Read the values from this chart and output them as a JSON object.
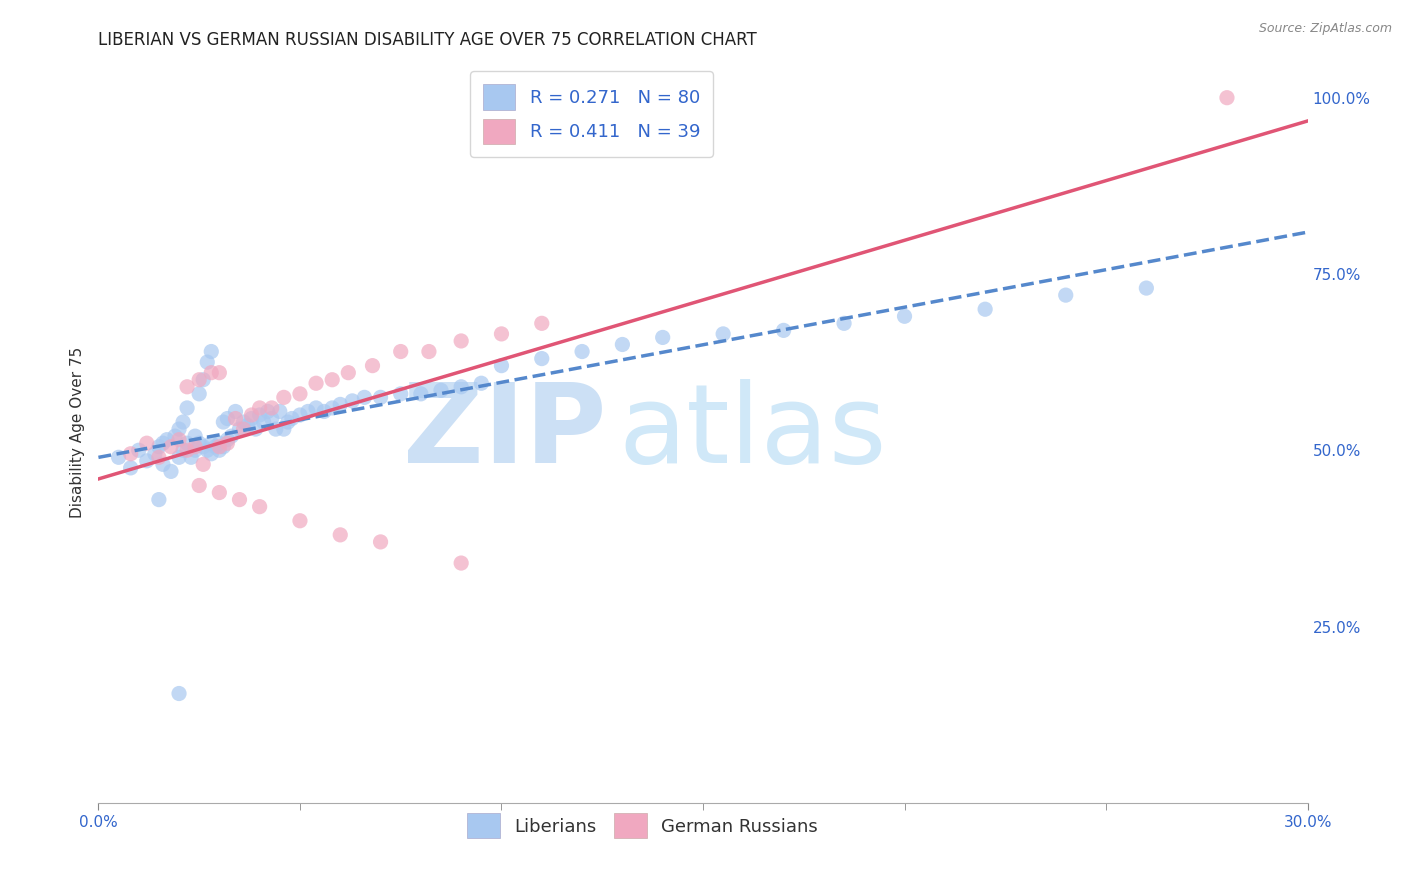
{
  "title": "LIBERIAN VS GERMAN RUSSIAN DISABILITY AGE OVER 75 CORRELATION CHART",
  "source": "Source: ZipAtlas.com",
  "ylabel": "Disability Age Over 75",
  "xmin": 0.0,
  "xmax": 0.3,
  "ymin": 0.0,
  "ymax": 1.05,
  "y_tick_vals": [
    0.25,
    0.5,
    0.75,
    1.0
  ],
  "y_tick_labels": [
    "25.0%",
    "50.0%",
    "75.0%",
    "100.0%"
  ],
  "x_edge_labels": [
    "0.0%",
    "30.0%"
  ],
  "liberian_color": "#a8c8f0",
  "liberian_edge_color": "#7aabdc",
  "german_russian_color": "#f0a8c0",
  "german_russian_edge_color": "#e07090",
  "liberian_line_color": "#5588cc",
  "german_russian_line_color": "#e05575",
  "background_color": "#ffffff",
  "grid_color": "#cccccc",
  "title_fontsize": 12,
  "axis_label_fontsize": 11,
  "tick_fontsize": 11,
  "legend_fontsize": 13,
  "liberian_x": [
    0.005,
    0.008,
    0.01,
    0.012,
    0.014,
    0.015,
    0.016,
    0.016,
    0.017,
    0.018,
    0.019,
    0.02,
    0.02,
    0.021,
    0.021,
    0.022,
    0.022,
    0.023,
    0.024,
    0.024,
    0.025,
    0.025,
    0.026,
    0.026,
    0.027,
    0.027,
    0.028,
    0.028,
    0.028,
    0.029,
    0.03,
    0.03,
    0.031,
    0.031,
    0.032,
    0.032,
    0.033,
    0.034,
    0.035,
    0.036,
    0.037,
    0.038,
    0.039,
    0.04,
    0.041,
    0.042,
    0.043,
    0.044,
    0.045,
    0.046,
    0.047,
    0.048,
    0.05,
    0.052,
    0.054,
    0.056,
    0.058,
    0.06,
    0.063,
    0.066,
    0.07,
    0.075,
    0.08,
    0.085,
    0.09,
    0.095,
    0.1,
    0.11,
    0.12,
    0.13,
    0.14,
    0.155,
    0.17,
    0.185,
    0.2,
    0.22,
    0.24,
    0.26,
    0.015,
    0.02
  ],
  "liberian_y": [
    0.49,
    0.475,
    0.5,
    0.485,
    0.495,
    0.505,
    0.51,
    0.48,
    0.515,
    0.47,
    0.52,
    0.53,
    0.49,
    0.5,
    0.54,
    0.51,
    0.56,
    0.49,
    0.5,
    0.52,
    0.58,
    0.51,
    0.6,
    0.505,
    0.625,
    0.5,
    0.64,
    0.495,
    0.51,
    0.505,
    0.5,
    0.51,
    0.505,
    0.54,
    0.515,
    0.545,
    0.52,
    0.555,
    0.53,
    0.54,
    0.535,
    0.545,
    0.53,
    0.55,
    0.54,
    0.555,
    0.545,
    0.53,
    0.555,
    0.53,
    0.54,
    0.545,
    0.55,
    0.555,
    0.56,
    0.555,
    0.56,
    0.565,
    0.57,
    0.575,
    0.575,
    0.58,
    0.58,
    0.585,
    0.59,
    0.595,
    0.62,
    0.63,
    0.64,
    0.65,
    0.66,
    0.665,
    0.67,
    0.68,
    0.69,
    0.7,
    0.72,
    0.73,
    0.43,
    0.155
  ],
  "german_russian_x": [
    0.008,
    0.012,
    0.015,
    0.018,
    0.02,
    0.022,
    0.022,
    0.024,
    0.025,
    0.026,
    0.028,
    0.03,
    0.03,
    0.032,
    0.034,
    0.036,
    0.038,
    0.04,
    0.043,
    0.046,
    0.05,
    0.054,
    0.058,
    0.062,
    0.068,
    0.075,
    0.082,
    0.09,
    0.1,
    0.11,
    0.025,
    0.03,
    0.035,
    0.04,
    0.05,
    0.06,
    0.07,
    0.09,
    0.28
  ],
  "german_russian_y": [
    0.495,
    0.51,
    0.49,
    0.505,
    0.515,
    0.5,
    0.59,
    0.505,
    0.6,
    0.48,
    0.61,
    0.505,
    0.61,
    0.51,
    0.545,
    0.53,
    0.55,
    0.56,
    0.56,
    0.575,
    0.58,
    0.595,
    0.6,
    0.61,
    0.62,
    0.64,
    0.64,
    0.655,
    0.665,
    0.68,
    0.45,
    0.44,
    0.43,
    0.42,
    0.4,
    0.38,
    0.37,
    0.34,
    1.0
  ],
  "watermark_zip_color": "#cce0f5",
  "watermark_atlas_color": "#d0e8f8"
}
